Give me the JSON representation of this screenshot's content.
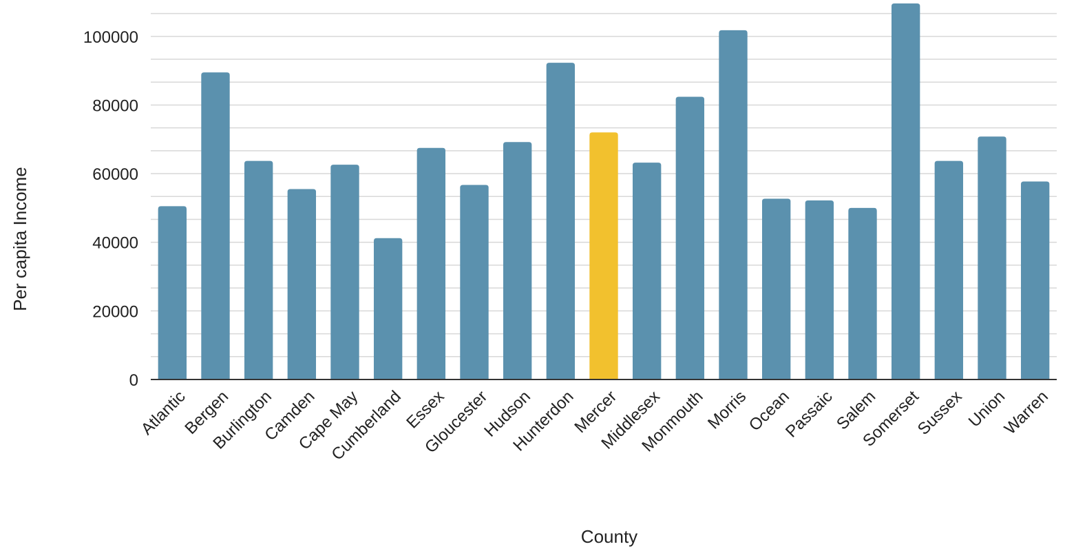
{
  "chart_data": {
    "type": "bar",
    "title": "",
    "xlabel": "County",
    "ylabel": "Per capita Income",
    "ylim": [
      0,
      110000
    ],
    "yticks": [
      0,
      20000,
      40000,
      60000,
      80000,
      100000
    ],
    "ytick_labels": [
      "0",
      "20000",
      "40000",
      "60000",
      "80000",
      "100000"
    ],
    "grid": true,
    "minor_grid": true,
    "categories": [
      "Atlantic",
      "Bergen",
      "Burlington",
      "Camden",
      "Cape May",
      "Cumberland",
      "Essex",
      "Gloucester",
      "Hudson",
      "Hunterdon",
      "Mercer",
      "Middlesex",
      "Monmouth",
      "Morris",
      "Ocean",
      "Passaic",
      "Salem",
      "Somerset",
      "Sussex",
      "Union",
      "Warren"
    ],
    "values": [
      50500,
      89500,
      63700,
      55500,
      62600,
      41200,
      67500,
      56700,
      69200,
      92300,
      72000,
      63200,
      82400,
      101800,
      52700,
      52200,
      50000,
      109600,
      63700,
      70800,
      57700
    ],
    "highlight_category": "Mercer",
    "colors": {
      "bar": "#5b91ae",
      "highlight": "#f2c12e",
      "grid": "#d8d8d8",
      "axis": "#333333"
    }
  }
}
